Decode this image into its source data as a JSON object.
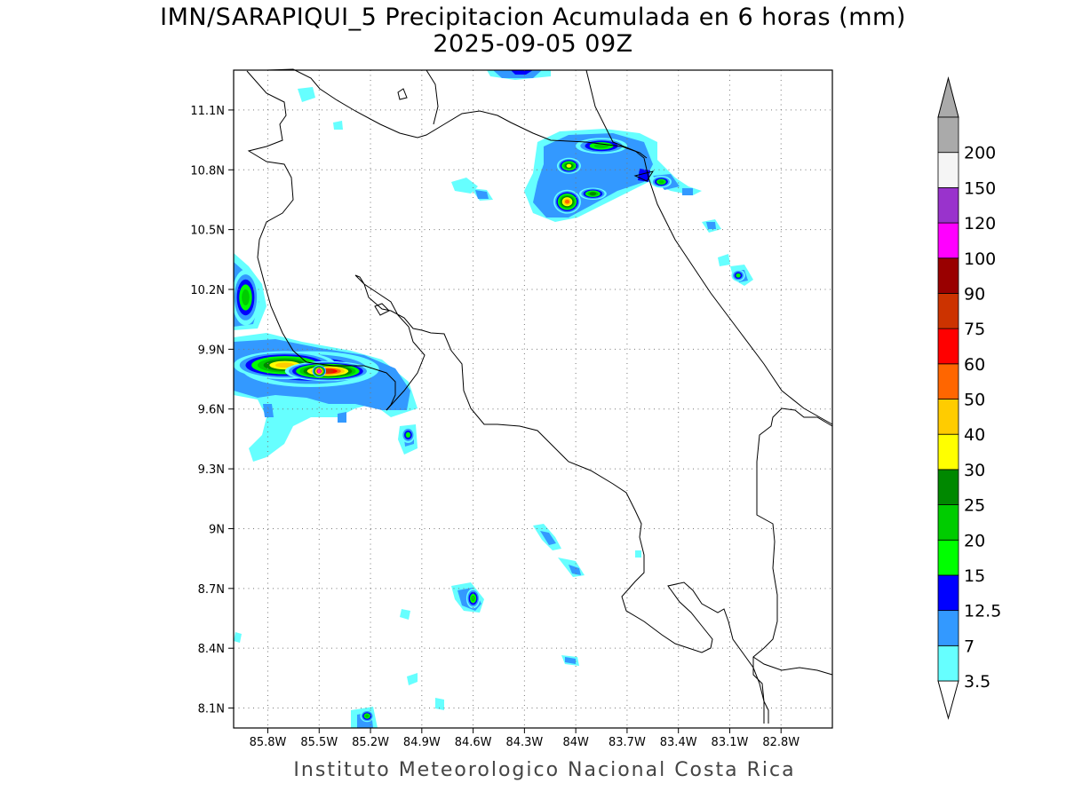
{
  "title": "IMN/SARAPIQUI_5 Precipitacion Acumulada en 6 horas (mm)",
  "subtitle": "2025-09-05 09Z",
  "footer": "Instituto Meteorologico Nacional Costa Rica",
  "map": {
    "lon_range": [
      -86.0,
      -82.5
    ],
    "lat_range": [
      8.0,
      11.3
    ],
    "lon_ticks": [
      {
        "value": -85.8,
        "label": "85.8W"
      },
      {
        "value": -85.5,
        "label": "85.5W"
      },
      {
        "value": -85.2,
        "label": "85.2W"
      },
      {
        "value": -84.9,
        "label": "84.9W"
      },
      {
        "value": -84.6,
        "label": "84.6W"
      },
      {
        "value": -84.3,
        "label": "84.3W"
      },
      {
        "value": -84.0,
        "label": "84W"
      },
      {
        "value": -83.7,
        "label": "83.7W"
      },
      {
        "value": -83.4,
        "label": "83.4W"
      },
      {
        "value": -83.1,
        "label": "83.1W"
      },
      {
        "value": -82.8,
        "label": "82.8W"
      }
    ],
    "lat_ticks": [
      {
        "value": 11.1,
        "label": "11.1N"
      },
      {
        "value": 10.8,
        "label": "10.8N"
      },
      {
        "value": 10.5,
        "label": "10.5N"
      },
      {
        "value": 10.2,
        "label": "10.2N"
      },
      {
        "value": 9.9,
        "label": "9.9N"
      },
      {
        "value": 9.6,
        "label": "9.6N"
      },
      {
        "value": 9.3,
        "label": "9.3N"
      },
      {
        "value": 9.0,
        "label": "9N"
      },
      {
        "value": 8.7,
        "label": "8.7N"
      },
      {
        "value": 8.4,
        "label": "8.4N"
      },
      {
        "value": 8.1,
        "label": "8.1N"
      }
    ],
    "grid": "dotted"
  },
  "legend": {
    "levels": [
      {
        "label": "3.5",
        "color": "#66ffff"
      },
      {
        "label": "7",
        "color": "#3399ff"
      },
      {
        "label": "12.5",
        "color": "#0000ff"
      },
      {
        "label": "15",
        "color": "#00ff00"
      },
      {
        "label": "20",
        "color": "#00cc00"
      },
      {
        "label": "25",
        "color": "#008800"
      },
      {
        "label": "30",
        "color": "#ffff00"
      },
      {
        "label": "40",
        "color": "#ffcc00"
      },
      {
        "label": "50",
        "color": "#ff6600"
      },
      {
        "label": "60",
        "color": "#ff0000"
      },
      {
        "label": "75",
        "color": "#cc3300"
      },
      {
        "label": "90",
        "color": "#990000"
      },
      {
        "label": "100",
        "color": "#ff00ff"
      },
      {
        "label": "120",
        "color": "#9933cc"
      },
      {
        "label": "150",
        "color": "#f5f5f5"
      },
      {
        "label": "200",
        "color": "#aaaaaa"
      }
    ],
    "bottom_color": "#ffffff",
    "top_color": "#aaaaaa"
  },
  "precip_cells": [
    {
      "lon": -85.55,
      "lat": 9.8,
      "rx": 0.4,
      "ry": 0.09,
      "level": 4
    },
    {
      "lon": -85.7,
      "lat": 9.82,
      "rx": 0.3,
      "ry": 0.07,
      "level": 7
    },
    {
      "lon": -85.45,
      "lat": 9.79,
      "rx": 0.25,
      "ry": 0.05,
      "level": 10
    },
    {
      "lon": -85.5,
      "lat": 9.79,
      "rx": 0.04,
      "ry": 0.03,
      "level": 12
    },
    {
      "lon": -85.93,
      "lat": 10.16,
      "rx": 0.08,
      "ry": 0.14,
      "level": 4
    },
    {
      "lon": -84.05,
      "lat": 10.64,
      "rx": 0.08,
      "ry": 0.06,
      "level": 8
    },
    {
      "lon": -84.04,
      "lat": 10.82,
      "rx": 0.07,
      "ry": 0.04,
      "level": 6
    },
    {
      "lon": -83.85,
      "lat": 10.92,
      "rx": 0.15,
      "ry": 0.04,
      "level": 4
    },
    {
      "lon": -83.9,
      "lat": 10.68,
      "rx": 0.08,
      "ry": 0.03,
      "level": 5
    },
    {
      "lon": -83.5,
      "lat": 10.74,
      "rx": 0.06,
      "ry": 0.03,
      "level": 4
    },
    {
      "lon": -84.6,
      "lat": 8.65,
      "rx": 0.04,
      "ry": 0.05,
      "level": 4
    },
    {
      "lon": -83.05,
      "lat": 10.27,
      "rx": 0.04,
      "ry": 0.03,
      "level": 3
    },
    {
      "lon": -84.98,
      "lat": 9.47,
      "rx": 0.04,
      "ry": 0.04,
      "level": 3
    },
    {
      "lon": -85.22,
      "lat": 8.06,
      "rx": 0.04,
      "ry": 0.03,
      "level": 4
    }
  ]
}
